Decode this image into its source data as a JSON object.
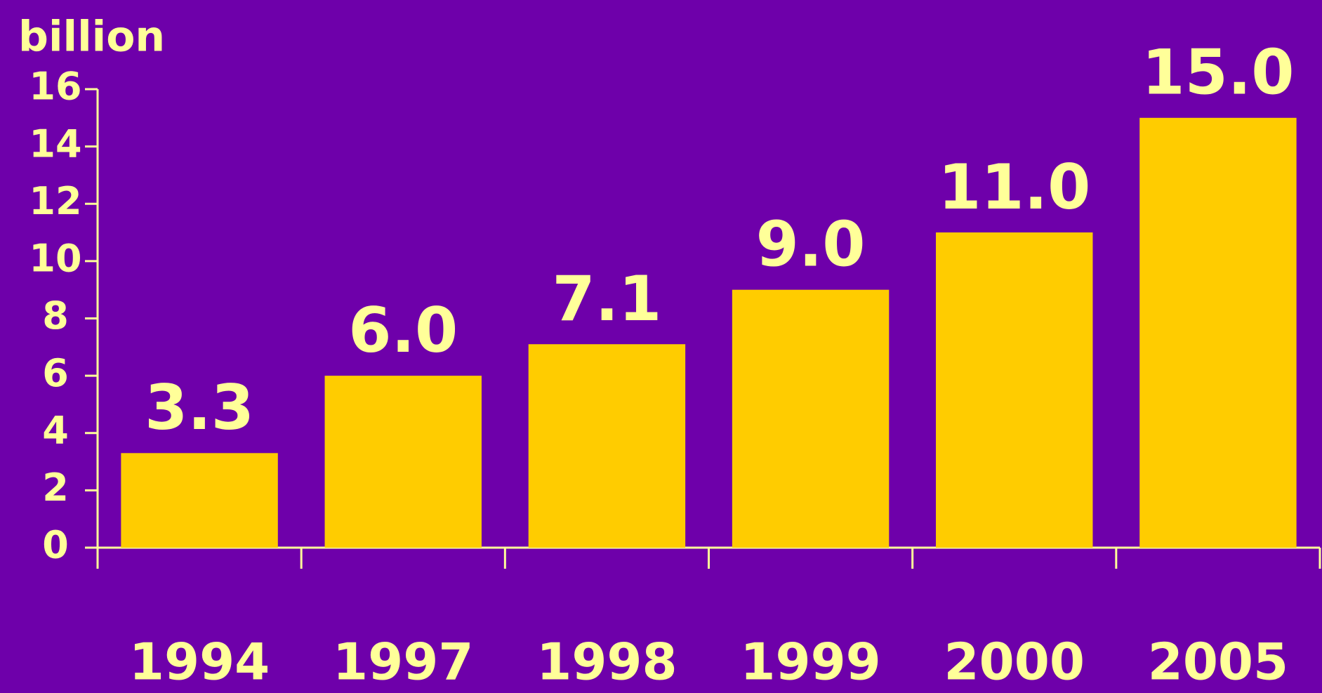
{
  "chart_data": {
    "type": "bar",
    "y_label": "billion",
    "categories": [
      "1994",
      "1997",
      "1998",
      "1999",
      "2000",
      "2005"
    ],
    "values": [
      3.3,
      6,
      7.1,
      9,
      11,
      15
    ],
    "value_labels": [
      "3.3",
      "6.0",
      "7.1",
      "9.0",
      "11.0",
      "15.0"
    ],
    "color": "#ffcc00",
    "ylim": [
      0,
      16
    ],
    "yticks": [
      0,
      2,
      4,
      6,
      8,
      10,
      12,
      14,
      16
    ],
    "grid": false
  }
}
